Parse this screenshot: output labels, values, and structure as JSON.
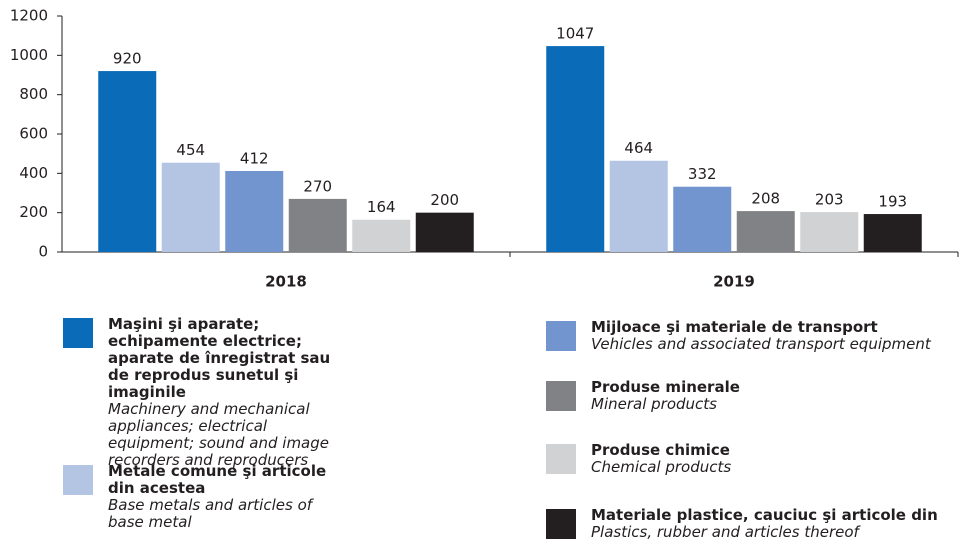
{
  "chart_data": {
    "type": "bar",
    "categories": [
      "2018",
      "2019"
    ],
    "series": [
      {
        "name": "Maşini şi aparate; echipamente electrice; aparate de înregistrat sau de reprodus sunetul şi imaginile",
        "translation": "Machinery and mechanical appliances; electrical equipment; sound and image recorders and reproducers",
        "color": "#0a6bb8",
        "values": [
          920,
          1047
        ]
      },
      {
        "name": "Metale comune şi articole din acestea",
        "translation": "Base metals and articles of base metal",
        "color": "#b4c5e4",
        "values": [
          454,
          464
        ]
      },
      {
        "name": "Mijloace şi materiale de transport",
        "translation": "Vehicles and associated transport equipment",
        "color": "#7294cf",
        "values": [
          412,
          332
        ]
      },
      {
        "name": "Produse minerale",
        "translation": "Mineral products",
        "color": "#808285",
        "values": [
          270,
          208
        ]
      },
      {
        "name": "Produse chimice",
        "translation": "Chemical products",
        "color": "#d1d2d4",
        "values": [
          164,
          203
        ]
      },
      {
        "name": "Materiale plastice, cauciuc şi articole din",
        "translation": "Plastics, rubber and articles thereof",
        "color": "#231f20",
        "values": [
          200,
          193
        ]
      }
    ],
    "ylim": [
      0,
      1200
    ],
    "yticks": [
      0,
      200,
      400,
      600,
      800,
      1000,
      1200
    ],
    "grid": false
  }
}
